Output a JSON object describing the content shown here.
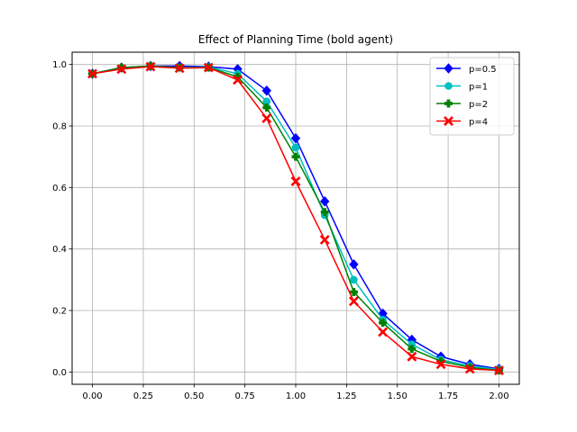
{
  "chart_data": {
    "type": "line",
    "title": "Effect of Planning Time (bold agent)",
    "xlabel": "",
    "ylabel": "",
    "xlim": [
      -0.1,
      2.1
    ],
    "ylim": [
      -0.04,
      1.04
    ],
    "grid": true,
    "legend_position": "upper right",
    "x_ticks": [
      0.0,
      0.25,
      0.5,
      0.75,
      1.0,
      1.25,
      1.5,
      1.75,
      2.0
    ],
    "x_tick_labels": [
      "0.00",
      "0.25",
      "0.50",
      "0.75",
      "1.00",
      "1.25",
      "1.50",
      "1.75",
      "2.00"
    ],
    "y_ticks": [
      0.0,
      0.2,
      0.4,
      0.6,
      0.8,
      1.0
    ],
    "y_tick_labels": [
      "0.0",
      "0.2",
      "0.4",
      "0.6",
      "0.8",
      "1.0"
    ],
    "x": [
      0.0,
      0.1429,
      0.2857,
      0.4286,
      0.5714,
      0.7143,
      0.8571,
      1.0,
      1.1429,
      1.2857,
      1.4286,
      1.5714,
      1.7143,
      1.8571,
      2.0
    ],
    "series": [
      {
        "name": "p=0.5",
        "color": "#0000ff",
        "marker": "diamond",
        "values": [
          0.97,
          0.99,
          0.995,
          0.995,
          0.993,
          0.985,
          0.915,
          0.76,
          0.555,
          0.35,
          0.19,
          0.105,
          0.05,
          0.025,
          0.01
        ]
      },
      {
        "name": "p=1",
        "color": "#00bfbf",
        "marker": "circle",
        "values": [
          0.97,
          0.99,
          0.995,
          0.99,
          0.992,
          0.97,
          0.88,
          0.73,
          0.51,
          0.3,
          0.17,
          0.09,
          0.04,
          0.02,
          0.008
        ]
      },
      {
        "name": "p=2",
        "color": "#008000",
        "marker": "plus",
        "values": [
          0.97,
          0.99,
          0.995,
          0.99,
          0.99,
          0.96,
          0.86,
          0.7,
          0.52,
          0.26,
          0.16,
          0.075,
          0.035,
          0.015,
          0.005
        ]
      },
      {
        "name": "p=4",
        "color": "#ff0000",
        "marker": "x",
        "values": [
          0.97,
          0.985,
          0.993,
          0.988,
          0.99,
          0.95,
          0.825,
          0.62,
          0.43,
          0.23,
          0.13,
          0.05,
          0.025,
          0.01,
          0.005
        ]
      }
    ]
  }
}
